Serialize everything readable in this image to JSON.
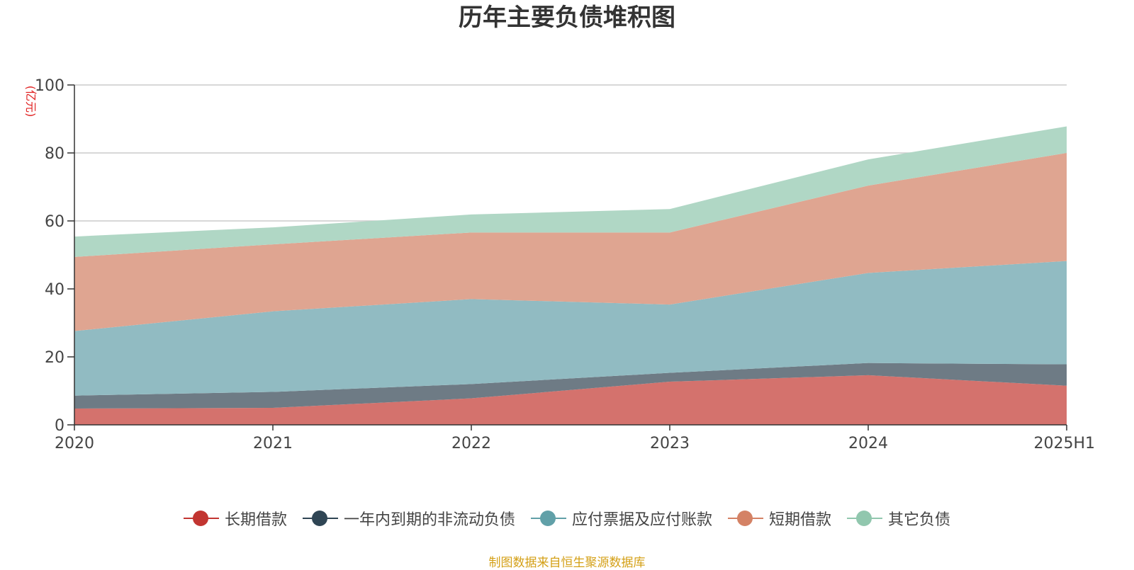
{
  "chart_data": {
    "type": "area",
    "stacked": true,
    "title": "历年主要负债堆积图",
    "unit_label": "(亿元)",
    "x": [
      "2020",
      "2021",
      "2022",
      "2023",
      "2024",
      "2025H1"
    ],
    "ylim": [
      0,
      100
    ],
    "yticks": [
      0,
      20,
      40,
      60,
      80,
      100
    ],
    "grid": true,
    "legend_position": "bottom",
    "series": [
      {
        "name": "长期借款",
        "values": [
          4.8,
          5.0,
          7.8,
          12.7,
          14.6,
          11.5
        ],
        "fill": "#d4726d",
        "marker": "#c23531"
      },
      {
        "name": "一年内到期的非流动负债",
        "values": [
          3.8,
          4.7,
          4.2,
          2.6,
          3.6,
          6.3
        ],
        "fill": "#6e7b85",
        "marker": "#2f4554"
      },
      {
        "name": "应付票据及应付账款",
        "values": [
          19.0,
          23.7,
          25.0,
          20.1,
          26.5,
          30.4
        ],
        "fill": "#91bbc2",
        "marker": "#61a0a8"
      },
      {
        "name": "短期借款",
        "values": [
          21.8,
          19.7,
          19.6,
          21.2,
          25.7,
          31.8
        ],
        "fill": "#dfa591",
        "marker": "#d48265"
      },
      {
        "name": "其它负债",
        "values": [
          6.0,
          5.0,
          5.3,
          6.9,
          7.7,
          7.8
        ],
        "fill": "#b0d7c5",
        "marker": "#91c7ae"
      }
    ]
  },
  "source_note": "制图数据来自恒生聚源数据库"
}
